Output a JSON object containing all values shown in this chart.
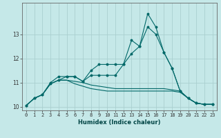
{
  "title": "",
  "xlabel": "Humidex (Indice chaleur)",
  "ylabel": "",
  "background_color": "#c5e8e8",
  "grid_color": "#aad0d0",
  "line_color": "#006868",
  "x": [
    0,
    1,
    2,
    3,
    4,
    5,
    6,
    7,
    8,
    9,
    10,
    11,
    12,
    13,
    14,
    15,
    16,
    17,
    18,
    19,
    20,
    21,
    22,
    23
  ],
  "s1": [
    10.05,
    10.35,
    10.5,
    11.0,
    11.25,
    11.25,
    11.25,
    11.05,
    11.5,
    11.75,
    11.75,
    11.75,
    11.75,
    12.2,
    12.5,
    13.85,
    13.3,
    12.25,
    11.6,
    10.65,
    10.35,
    10.15,
    10.1,
    10.1
  ],
  "s2": [
    10.05,
    10.35,
    10.5,
    10.95,
    11.1,
    11.25,
    11.25,
    11.05,
    11.3,
    11.3,
    11.3,
    11.3,
    11.75,
    12.75,
    12.5,
    13.3,
    13.0,
    12.25,
    11.6,
    10.65,
    10.35,
    10.15,
    10.1,
    10.1
  ],
  "s3": [
    10.05,
    10.35,
    10.5,
    10.95,
    11.1,
    11.1,
    11.05,
    11.0,
    10.9,
    10.85,
    10.8,
    10.75,
    10.75,
    10.75,
    10.75,
    10.75,
    10.75,
    10.75,
    10.7,
    10.65,
    10.35,
    10.15,
    10.1,
    10.1
  ],
  "s4": [
    10.05,
    10.35,
    10.5,
    10.95,
    11.1,
    11.1,
    10.95,
    10.85,
    10.75,
    10.7,
    10.65,
    10.65,
    10.65,
    10.65,
    10.65,
    10.65,
    10.65,
    10.65,
    10.65,
    10.6,
    10.35,
    10.15,
    10.1,
    10.1
  ],
  "ylim": [
    9.85,
    14.3
  ],
  "yticks": [
    10,
    11,
    12,
    13
  ],
  "xticks": [
    0,
    1,
    2,
    3,
    4,
    5,
    6,
    7,
    8,
    9,
    10,
    11,
    12,
    13,
    14,
    15,
    16,
    17,
    18,
    19,
    20,
    21,
    22,
    23
  ],
  "tick_fontsize": 5.0,
  "xlabel_fontsize": 6.0,
  "ytick_fontsize": 5.5
}
